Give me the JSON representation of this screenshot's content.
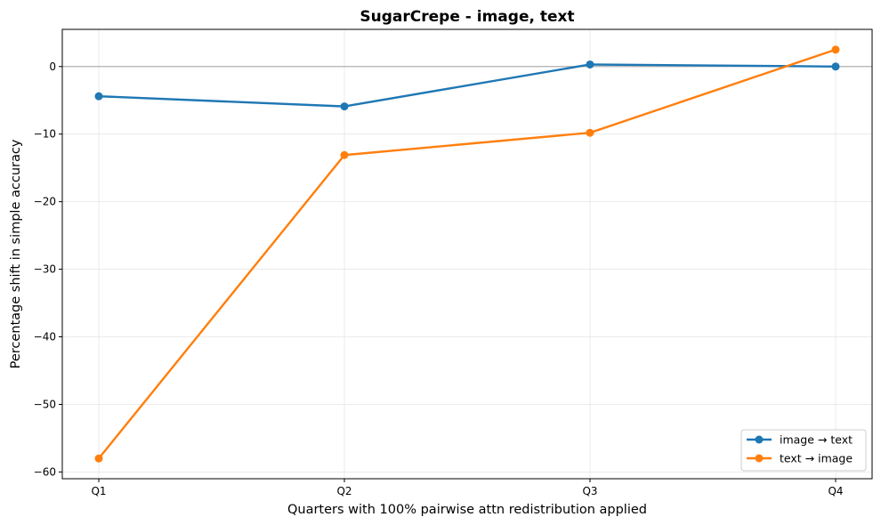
{
  "chart_data": {
    "type": "line",
    "title": "SugarCrepe - image, text",
    "xlabel": "Quarters with 100% pairwise attn redistribution applied",
    "ylabel": "Percentage shift in simple accuracy",
    "categories": [
      "Q1",
      "Q2",
      "Q3",
      "Q4"
    ],
    "ylim": [
      -61,
      5.5
    ],
    "yticks": [
      0,
      -10,
      -20,
      -30,
      -40,
      -50,
      -60
    ],
    "ytick_labels": [
      "0",
      "−10",
      "−20",
      "−30",
      "−40",
      "−50",
      "−60"
    ],
    "grid": true,
    "reference_line_y": 0,
    "legend_position": "lower-right",
    "series": [
      {
        "name": "image → text",
        "color": "#1f77b4",
        "values": [
          -4.4,
          -5.9,
          0.3,
          0.0
        ]
      },
      {
        "name": "text → image",
        "color": "#ff7f0e",
        "values": [
          -58.0,
          -13.1,
          -9.8,
          2.5
        ]
      }
    ]
  }
}
